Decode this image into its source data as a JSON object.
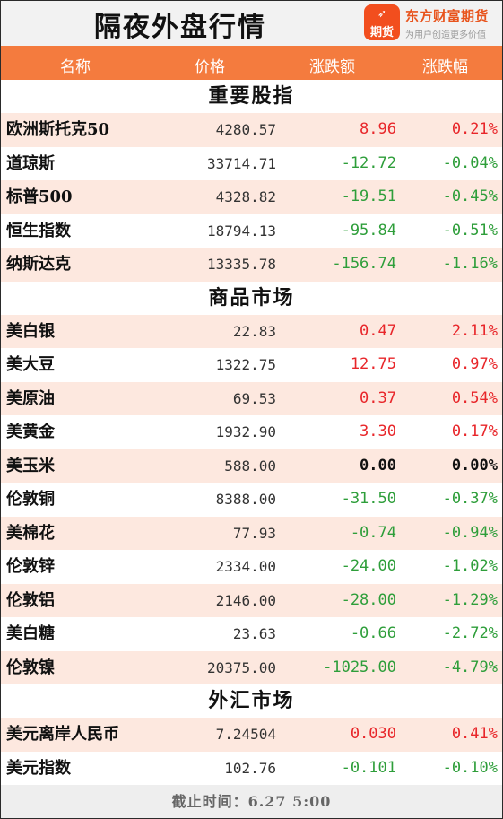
{
  "header": {
    "title": "隔夜外盘行情",
    "brand_name": "东方财富期货",
    "brand_slogan": "为用户创造更多价值",
    "logo_text": "期货",
    "logo_icon": "rocket-swirl-icon",
    "logo_color": "#f24e1e"
  },
  "columns": {
    "name": "名称",
    "price": "价格",
    "change": "涨跌额",
    "pct": "涨跌幅"
  },
  "colors": {
    "up": "#e8262a",
    "down": "#2e9e3a",
    "flat": "#111111",
    "header_bg": "#f47b3e",
    "row_alt": "#fde8df"
  },
  "sections": [
    {
      "title": "重要股指",
      "rows": [
        {
          "name": "欧洲斯托克50",
          "price": "4280.57",
          "change": "8.96",
          "pct": "0.21%",
          "dir": "up"
        },
        {
          "name": "道琼斯",
          "price": "33714.71",
          "change": "-12.72",
          "pct": "-0.04%",
          "dir": "down"
        },
        {
          "name": "标普500",
          "price": "4328.82",
          "change": "-19.51",
          "pct": "-0.45%",
          "dir": "down"
        },
        {
          "name": "恒生指数",
          "price": "18794.13",
          "change": "-95.84",
          "pct": "-0.51%",
          "dir": "down"
        },
        {
          "name": "纳斯达克",
          "price": "13335.78",
          "change": "-156.74",
          "pct": "-1.16%",
          "dir": "down"
        }
      ]
    },
    {
      "title": "商品市场",
      "rows": [
        {
          "name": "美白银",
          "price": "22.83",
          "change": "0.47",
          "pct": "2.11%",
          "dir": "up"
        },
        {
          "name": "美大豆",
          "price": "1322.75",
          "change": "12.75",
          "pct": "0.97%",
          "dir": "up"
        },
        {
          "name": "美原油",
          "price": "69.53",
          "change": "0.37",
          "pct": "0.54%",
          "dir": "up"
        },
        {
          "name": "美黄金",
          "price": "1932.90",
          "change": "3.30",
          "pct": "0.17%",
          "dir": "up"
        },
        {
          "name": "美玉米",
          "price": "588.00",
          "change": "0.00",
          "pct": "0.00%",
          "dir": "flat"
        },
        {
          "name": "伦敦铜",
          "price": "8388.00",
          "change": "-31.50",
          "pct": "-0.37%",
          "dir": "down"
        },
        {
          "name": "美棉花",
          "price": "77.93",
          "change": "-0.74",
          "pct": "-0.94%",
          "dir": "down"
        },
        {
          "name": "伦敦锌",
          "price": "2334.00",
          "change": "-24.00",
          "pct": "-1.02%",
          "dir": "down"
        },
        {
          "name": "伦敦铝",
          "price": "2146.00",
          "change": "-28.00",
          "pct": "-1.29%",
          "dir": "down"
        },
        {
          "name": "美白糖",
          "price": "23.63",
          "change": "-0.66",
          "pct": "-2.72%",
          "dir": "down"
        },
        {
          "name": "伦敦镍",
          "price": "20375.00",
          "change": "-1025.00",
          "pct": "-4.79%",
          "dir": "down"
        }
      ]
    },
    {
      "title": "外汇市场",
      "rows": [
        {
          "name": "美元离岸人民币",
          "price": "7.24504",
          "change": "0.030",
          "pct": "0.41%",
          "dir": "up"
        },
        {
          "name": "美元指数",
          "price": "102.76",
          "change": "-0.101",
          "pct": "-0.10%",
          "dir": "down"
        }
      ]
    }
  ],
  "footer": {
    "text": "截止时间：6.27 5:00"
  }
}
